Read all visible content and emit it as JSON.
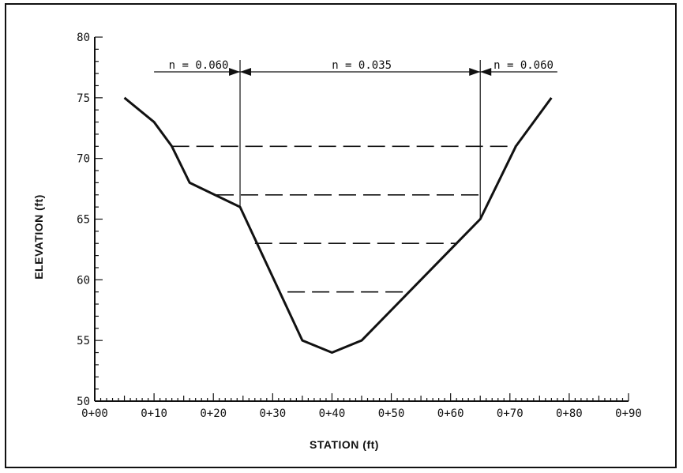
{
  "chart_data": {
    "type": "line",
    "xlabel": "STATION (ft)",
    "ylabel": "ELEVATION (ft)",
    "xlim": [
      0,
      90
    ],
    "ylim": [
      50,
      80
    ],
    "x_tick_values": [
      0,
      10,
      20,
      30,
      40,
      50,
      60,
      70,
      80,
      90
    ],
    "x_tick_labels": [
      "0+00",
      "0+10",
      "0+20",
      "0+30",
      "0+40",
      "0+50",
      "0+60",
      "0+70",
      "0+80",
      "0+90"
    ],
    "y_tick_values": [
      50,
      55,
      60,
      65,
      70,
      75,
      80
    ],
    "y_tick_labels": [
      "50",
      "55",
      "60",
      "65",
      "70",
      "75",
      "80"
    ],
    "series": [
      {
        "x": [
          5,
          10,
          13,
          16,
          24.5,
          35,
          40,
          45,
          53,
          61,
          65,
          71,
          77
        ],
        "y": [
          75,
          73,
          71,
          68,
          66,
          55,
          54,
          55,
          59,
          63,
          65,
          71,
          75
        ]
      }
    ],
    "water_levels": [
      {
        "y": 71,
        "x": [
          13,
          71
        ]
      },
      {
        "y": 67,
        "x": [
          20.5,
          65.5
        ]
      },
      {
        "y": 63,
        "x": [
          27,
          61
        ]
      },
      {
        "y": 59,
        "x": [
          32.5,
          53
        ]
      }
    ],
    "dividers": [
      24.5,
      65
    ],
    "roughness": [
      {
        "label": "n = 0.060",
        "x_from": 10,
        "x_to": 24.5
      },
      {
        "label": "n = 0.035",
        "x_from": 24.5,
        "x_to": 65
      },
      {
        "label": "n = 0.060",
        "x_from": 65,
        "x_to": 78
      }
    ],
    "grid": false
  }
}
